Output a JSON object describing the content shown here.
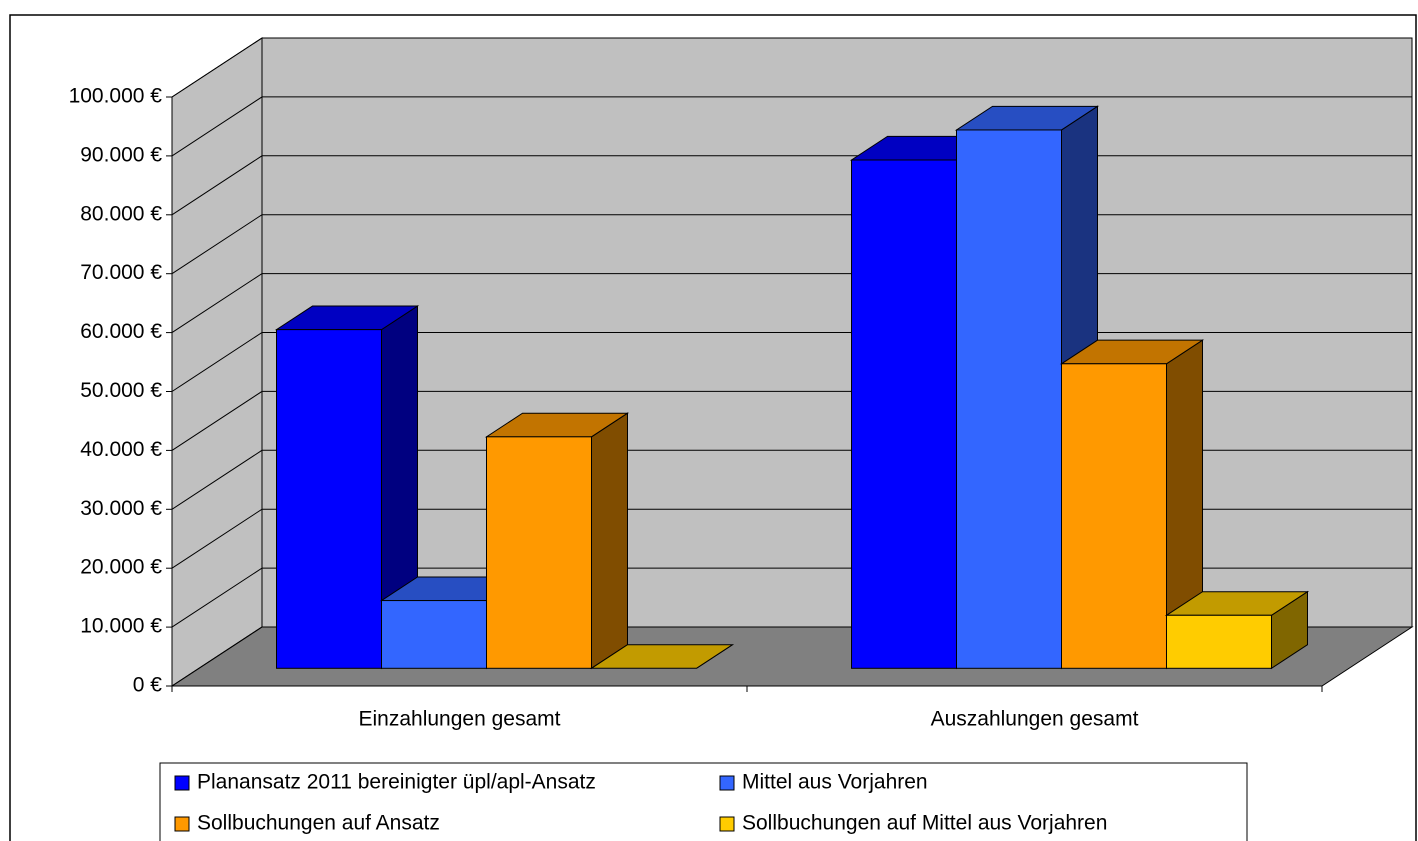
{
  "chart_data": {
    "type": "bar3d",
    "categories": [
      "Einzahlungen gesamt",
      "Auszahlungen gesamt"
    ],
    "series": [
      {
        "name": "Planansatz 2011 bereinigter üpl/apl-Ansatz",
        "color": "#0000ff",
        "values": [
          57500,
          86300
        ]
      },
      {
        "name": "Mittel aus Vorjahren",
        "color": "#3366ff",
        "values": [
          11500,
          91400
        ]
      },
      {
        "name": "Sollbuchungen auf Ansatz",
        "color": "#ff9900",
        "values": [
          39300,
          51700
        ]
      },
      {
        "name": "Sollbuchungen auf Mittel aus Vorjahren",
        "color": "#ffcc00",
        "values": [
          0,
          9000
        ]
      }
    ],
    "ylim": [
      0,
      100000
    ],
    "yticks": [
      {
        "value": 0,
        "label": "0 €"
      },
      {
        "value": 10000,
        "label": "10.000 €"
      },
      {
        "value": 20000,
        "label": "20.000 €"
      },
      {
        "value": 30000,
        "label": "30.000 €"
      },
      {
        "value": 40000,
        "label": "40.000 €"
      },
      {
        "value": 50000,
        "label": "50.000 €"
      },
      {
        "value": 60000,
        "label": "60.000 €"
      },
      {
        "value": 70000,
        "label": "70.000 €"
      },
      {
        "value": 80000,
        "label": "80.000 €"
      },
      {
        "value": 90000,
        "label": "90.000 €"
      },
      {
        "value": 100000,
        "label": "100.000 €"
      }
    ],
    "grid": true,
    "legend": "bottom"
  }
}
